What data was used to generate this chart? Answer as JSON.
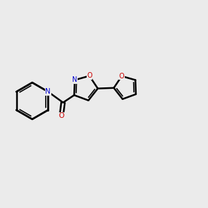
{
  "bg": "#ebebeb",
  "bond": "#000000",
  "N_color": "#0000cc",
  "O_color": "#cc0000",
  "lw": 1.8,
  "dlw": 1.2,
  "figsize": [
    3.0,
    3.0
  ],
  "dpi": 100,
  "atoms": {
    "N": {
      "color": "#0000cc"
    },
    "O": {
      "color": "#cc0000"
    }
  }
}
